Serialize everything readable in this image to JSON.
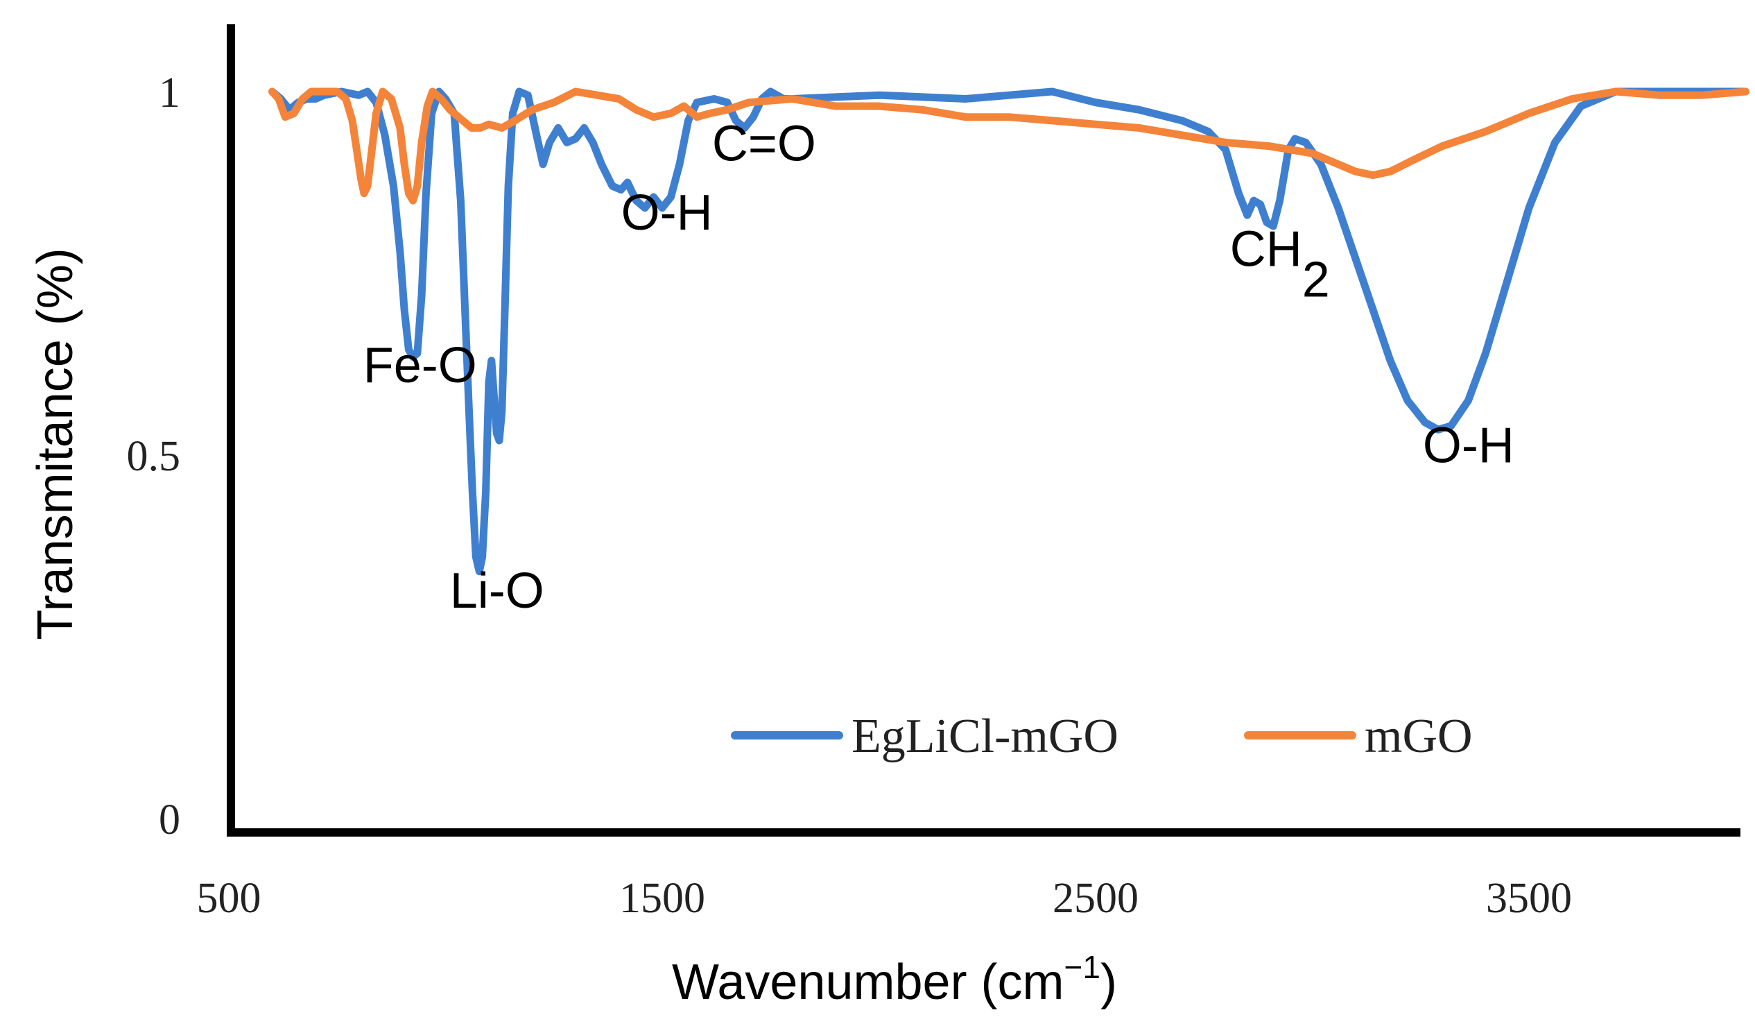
{
  "chart_data": {
    "type": "line",
    "title": "",
    "xlabel": "Wavenumber (cm",
    "xlabel_sup": "−1",
    "xlabel_close": ")",
    "ylabel": "Transmitance (%)",
    "xlim": [
      500,
      4000
    ],
    "ylim": [
      0,
      1.05
    ],
    "x_ticks": [
      500,
      1500,
      2500,
      3500
    ],
    "x_tick_labels": [
      "500",
      "1500",
      "2500",
      "3500"
    ],
    "y_ticks": [
      0,
      0.5,
      1
    ],
    "y_tick_labels": [
      "0",
      "0.5",
      "1"
    ],
    "legend_position": "bottom-right",
    "series": [
      {
        "name": "EgLiCl-mGO",
        "color": "#3f7fd0",
        "points": [
          [
            600,
            1.0
          ],
          [
            620,
            0.99
          ],
          [
            640,
            0.975
          ],
          [
            660,
            0.985
          ],
          [
            680,
            0.99
          ],
          [
            700,
            0.99
          ],
          [
            720,
            0.995
          ],
          [
            760,
            1.0
          ],
          [
            800,
            0.995
          ],
          [
            820,
            1.0
          ],
          [
            840,
            0.985
          ],
          [
            860,
            0.94
          ],
          [
            880,
            0.87
          ],
          [
            895,
            0.78
          ],
          [
            905,
            0.7
          ],
          [
            915,
            0.645
          ],
          [
            925,
            0.635
          ],
          [
            935,
            0.64
          ],
          [
            945,
            0.72
          ],
          [
            955,
            0.86
          ],
          [
            968,
            0.97
          ],
          [
            985,
            1.0
          ],
          [
            1000,
            0.99
          ],
          [
            1020,
            0.97
          ],
          [
            1035,
            0.85
          ],
          [
            1045,
            0.7
          ],
          [
            1055,
            0.55
          ],
          [
            1062,
            0.45
          ],
          [
            1070,
            0.36
          ],
          [
            1078,
            0.34
          ],
          [
            1085,
            0.36
          ],
          [
            1093,
            0.45
          ],
          [
            1100,
            0.6
          ],
          [
            1106,
            0.63
          ],
          [
            1112,
            0.58
          ],
          [
            1118,
            0.53
          ],
          [
            1124,
            0.52
          ],
          [
            1130,
            0.56
          ],
          [
            1137,
            0.7
          ],
          [
            1145,
            0.87
          ],
          [
            1155,
            0.97
          ],
          [
            1170,
            1.0
          ],
          [
            1190,
            0.995
          ],
          [
            1210,
            0.94
          ],
          [
            1225,
            0.9
          ],
          [
            1240,
            0.93
          ],
          [
            1260,
            0.95
          ],
          [
            1280,
            0.93
          ],
          [
            1300,
            0.935
          ],
          [
            1320,
            0.95
          ],
          [
            1340,
            0.93
          ],
          [
            1360,
            0.9
          ],
          [
            1385,
            0.87
          ],
          [
            1405,
            0.865
          ],
          [
            1420,
            0.875
          ],
          [
            1440,
            0.85
          ],
          [
            1460,
            0.84
          ],
          [
            1480,
            0.855
          ],
          [
            1500,
            0.84
          ],
          [
            1520,
            0.855
          ],
          [
            1540,
            0.9
          ],
          [
            1560,
            0.96
          ],
          [
            1580,
            0.985
          ],
          [
            1620,
            0.99
          ],
          [
            1650,
            0.985
          ],
          [
            1670,
            0.96
          ],
          [
            1690,
            0.95
          ],
          [
            1710,
            0.965
          ],
          [
            1730,
            0.99
          ],
          [
            1750,
            1.0
          ],
          [
            1780,
            0.99
          ],
          [
            1800,
            0.99
          ],
          [
            2000,
            0.995
          ],
          [
            2200,
            0.99
          ],
          [
            2400,
            1.0
          ],
          [
            2500,
            0.985
          ],
          [
            2600,
            0.975
          ],
          [
            2700,
            0.96
          ],
          [
            2760,
            0.945
          ],
          [
            2800,
            0.92
          ],
          [
            2830,
            0.86
          ],
          [
            2850,
            0.83
          ],
          [
            2865,
            0.85
          ],
          [
            2880,
            0.845
          ],
          [
            2895,
            0.82
          ],
          [
            2910,
            0.815
          ],
          [
            2925,
            0.85
          ],
          [
            2945,
            0.92
          ],
          [
            2960,
            0.935
          ],
          [
            2985,
            0.93
          ],
          [
            3020,
            0.9
          ],
          [
            3060,
            0.84
          ],
          [
            3100,
            0.77
          ],
          [
            3140,
            0.7
          ],
          [
            3180,
            0.63
          ],
          [
            3220,
            0.575
          ],
          [
            3260,
            0.545
          ],
          [
            3290,
            0.535
          ],
          [
            3320,
            0.54
          ],
          [
            3360,
            0.575
          ],
          [
            3400,
            0.64
          ],
          [
            3450,
            0.74
          ],
          [
            3500,
            0.84
          ],
          [
            3560,
            0.93
          ],
          [
            3620,
            0.98
          ],
          [
            3700,
            1.0
          ],
          [
            3800,
            1.0
          ],
          [
            3900,
            1.0
          ],
          [
            4000,
            1.0
          ]
        ]
      },
      {
        "name": "mGO",
        "color": "#f4843a",
        "points": [
          [
            600,
            1.0
          ],
          [
            615,
            0.99
          ],
          [
            630,
            0.965
          ],
          [
            650,
            0.97
          ],
          [
            670,
            0.99
          ],
          [
            690,
            1.0
          ],
          [
            720,
            1.0
          ],
          [
            750,
            1.0
          ],
          [
            770,
            0.99
          ],
          [
            785,
            0.96
          ],
          [
            795,
            0.92
          ],
          [
            805,
            0.88
          ],
          [
            812,
            0.86
          ],
          [
            820,
            0.87
          ],
          [
            830,
            0.92
          ],
          [
            840,
            0.97
          ],
          [
            855,
            1.0
          ],
          [
            875,
            0.99
          ],
          [
            895,
            0.95
          ],
          [
            905,
            0.9
          ],
          [
            915,
            0.86
          ],
          [
            925,
            0.85
          ],
          [
            935,
            0.87
          ],
          [
            945,
            0.93
          ],
          [
            958,
            0.98
          ],
          [
            970,
            1.0
          ],
          [
            990,
            0.99
          ],
          [
            1010,
            0.975
          ],
          [
            1040,
            0.96
          ],
          [
            1060,
            0.95
          ],
          [
            1080,
            0.95
          ],
          [
            1100,
            0.955
          ],
          [
            1130,
            0.95
          ],
          [
            1160,
            0.96
          ],
          [
            1200,
            0.975
          ],
          [
            1250,
            0.985
          ],
          [
            1300,
            1.0
          ],
          [
            1350,
            0.995
          ],
          [
            1400,
            0.99
          ],
          [
            1440,
            0.975
          ],
          [
            1480,
            0.965
          ],
          [
            1520,
            0.97
          ],
          [
            1550,
            0.98
          ],
          [
            1580,
            0.965
          ],
          [
            1610,
            0.97
          ],
          [
            1650,
            0.975
          ],
          [
            1700,
            0.985
          ],
          [
            1800,
            0.99
          ],
          [
            1900,
            0.98
          ],
          [
            2000,
            0.98
          ],
          [
            2100,
            0.975
          ],
          [
            2200,
            0.965
          ],
          [
            2300,
            0.965
          ],
          [
            2400,
            0.96
          ],
          [
            2500,
            0.955
          ],
          [
            2600,
            0.95
          ],
          [
            2700,
            0.94
          ],
          [
            2800,
            0.93
          ],
          [
            2900,
            0.925
          ],
          [
            3000,
            0.915
          ],
          [
            3060,
            0.9
          ],
          [
            3100,
            0.89
          ],
          [
            3140,
            0.885
          ],
          [
            3180,
            0.89
          ],
          [
            3230,
            0.905
          ],
          [
            3300,
            0.925
          ],
          [
            3400,
            0.945
          ],
          [
            3500,
            0.97
          ],
          [
            3600,
            0.99
          ],
          [
            3700,
            1.0
          ],
          [
            3800,
            0.995
          ],
          [
            3900,
            0.995
          ],
          [
            4000,
            1.0
          ]
        ]
      }
    ],
    "annotations": [
      {
        "text": "Fe-O",
        "x": 810,
        "y": 0.6
      },
      {
        "text": "Li-O",
        "x": 1010,
        "y": 0.29
      },
      {
        "text": "O-H",
        "x": 1405,
        "y": 0.81
      },
      {
        "text": "C=O",
        "x": 1615,
        "y": 0.905
      },
      {
        "text": "CH",
        "sub": "2",
        "x": 2810,
        "y": 0.76
      },
      {
        "text": "O-H",
        "x": 3255,
        "y": 0.49
      }
    ]
  }
}
